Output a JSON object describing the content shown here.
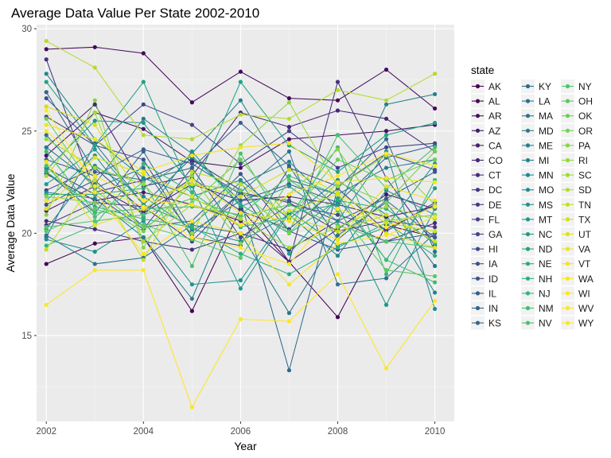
{
  "chart_data": {
    "type": "line",
    "title": "Average Data Value Per State 2002-2010",
    "xlabel": "Year",
    "ylabel": "Average Data Value",
    "xlim": [
      2001.8,
      2010.4
    ],
    "ylim": [
      10.8,
      30.2
    ],
    "x_ticks": [
      2002,
      2004,
      2006,
      2008,
      2010
    ],
    "y_ticks": [
      15,
      20,
      25,
      30
    ],
    "grid": true,
    "legend": {
      "title": "state",
      "placement": "right"
    },
    "x": [
      2002,
      2003,
      2004,
      2005,
      2006,
      2007,
      2008,
      2009,
      2010
    ],
    "series": [
      {
        "name": "AK",
        "color": "#440154",
        "values": [
          18.5,
          19.5,
          19.8,
          16.2,
          21.2,
          18.6,
          15.9,
          20.4,
          19.8
        ]
      },
      {
        "name": "AL",
        "color": "#46085C",
        "values": [
          29.0,
          29.1,
          28.8,
          26.4,
          27.9,
          26.6,
          26.5,
          28.0,
          26.1
        ]
      },
      {
        "name": "AR",
        "color": "#471063",
        "values": [
          23.8,
          25.9,
          25.1,
          23.5,
          23.2,
          24.6,
          24.8,
          25.0,
          25.3
        ]
      },
      {
        "name": "AZ",
        "color": "#481769",
        "values": [
          22.9,
          21.6,
          22.0,
          21.4,
          20.6,
          18.6,
          20.2,
          21.9,
          21.2
        ]
      },
      {
        "name": "CA",
        "color": "#481E70",
        "values": [
          21.1,
          22.3,
          21.0,
          22.4,
          21.6,
          21.8,
          21.4,
          20.8,
          21.3
        ]
      },
      {
        "name": "CO",
        "color": "#472575",
        "values": [
          24.2,
          26.3,
          22.3,
          22.8,
          25.9,
          25.2,
          26.0,
          25.6,
          24.0
        ]
      },
      {
        "name": "CT",
        "color": "#472C7A",
        "values": [
          20.6,
          20.2,
          19.6,
          19.2,
          20.0,
          19.2,
          20.6,
          19.6,
          20.5
        ]
      },
      {
        "name": "DC",
        "color": "#46327E",
        "values": [
          28.5,
          22.0,
          22.6,
          23.6,
          22.1,
          18.6,
          27.4,
          22.7,
          19.4
        ]
      },
      {
        "name": "DE",
        "color": "#453882",
        "values": [
          20.4,
          21.5,
          21.3,
          19.6,
          22.0,
          21.5,
          20.1,
          20.6,
          20.3
        ]
      },
      {
        "name": "FL",
        "color": "#433E85",
        "values": [
          22.1,
          23.2,
          21.1,
          22.7,
          21.1,
          20.2,
          22.2,
          20.1,
          21.5
        ]
      },
      {
        "name": "GA",
        "color": "#414487",
        "values": [
          25.7,
          24.3,
          26.3,
          25.3,
          23.4,
          25.0,
          23.2,
          24.2,
          24.4
        ]
      },
      {
        "name": "HI",
        "color": "#3F4A8A",
        "values": [
          23.2,
          21.9,
          20.2,
          23.2,
          19.8,
          21.4,
          20.9,
          20.2,
          21.4
        ]
      },
      {
        "name": "IA",
        "color": "#3C4F8A",
        "values": [
          26.6,
          24.3,
          23.6,
          19.8,
          19.4,
          23.2,
          22.3,
          23.9,
          23.1
        ]
      },
      {
        "name": "ID",
        "color": "#39558C",
        "values": [
          21.4,
          22.6,
          20.3,
          20.6,
          22.9,
          20.1,
          19.2,
          19.6,
          20.0
        ]
      },
      {
        "name": "IL",
        "color": "#375B8D",
        "values": [
          23.6,
          22.8,
          24.1,
          23.4,
          21.9,
          21.6,
          20.6,
          21.7,
          23.0
        ]
      },
      {
        "name": "IN",
        "color": "#34618D",
        "values": [
          26.9,
          23.0,
          22.6,
          23.2,
          25.4,
          23.3,
          19.7,
          21.6,
          19.8
        ]
      },
      {
        "name": "KS",
        "color": "#31668E",
        "values": [
          23.0,
          21.0,
          24.0,
          20.1,
          21.6,
          22.4,
          21.5,
          23.7,
          24.3
        ]
      },
      {
        "name": "KY",
        "color": "#2F6B8E",
        "values": [
          19.8,
          24.4,
          21.4,
          23.7,
          21.6,
          13.3,
          22.2,
          24.6,
          19.1
        ]
      },
      {
        "name": "LA",
        "color": "#2D718E",
        "values": [
          24.8,
          22.2,
          23.2,
          19.9,
          22.0,
          24.0,
          17.5,
          17.8,
          20.0
        ]
      },
      {
        "name": "MA",
        "color": "#2B758E",
        "values": [
          19.9,
          18.5,
          18.8,
          20.4,
          20.0,
          16.1,
          19.9,
          21.5,
          18.4
        ]
      },
      {
        "name": "MD",
        "color": "#297A8E",
        "values": [
          24.2,
          22.4,
          25.6,
          23.9,
          26.5,
          22.6,
          21.9,
          23.2,
          23.6
        ]
      },
      {
        "name": "ME",
        "color": "#277F8E",
        "values": [
          22.0,
          21.7,
          19.8,
          16.8,
          22.4,
          23.5,
          21.2,
          26.3,
          26.8
        ]
      },
      {
        "name": "MI",
        "color": "#25848E",
        "values": [
          27.8,
          24.6,
          22.7,
          21.8,
          22.6,
          20.7,
          22.6,
          20.9,
          17.1
        ]
      },
      {
        "name": "MN",
        "color": "#23898E",
        "values": [
          20.2,
          23.3,
          21.8,
          20.2,
          19.6,
          20.9,
          18.9,
          22.1,
          20.9
        ]
      },
      {
        "name": "MO",
        "color": "#218E8D",
        "values": [
          21.6,
          23.8,
          20.8,
          24.0,
          21.3,
          22.3,
          20.6,
          24.0,
          16.3
        ]
      },
      {
        "name": "MS",
        "color": "#1F928C",
        "values": [
          19.7,
          19.1,
          20.6,
          17.5,
          17.7,
          21.1,
          19.4,
          20.3,
          23.4
        ]
      },
      {
        "name": "MT",
        "color": "#1E978A",
        "values": [
          23.1,
          25.5,
          25.4,
          22.3,
          17.3,
          21.0,
          21.4,
          16.5,
          21.2
        ]
      },
      {
        "name": "NC",
        "color": "#1F9C89",
        "values": [
          22.4,
          24.1,
          21.4,
          20.4,
          22.5,
          19.0,
          21.7,
          18.7,
          22.2
        ]
      },
      {
        "name": "ND",
        "color": "#20A386",
        "values": [
          27.4,
          24.3,
          27.4,
          22.0,
          27.4,
          24.3,
          23.0,
          24.8,
          25.4
        ]
      },
      {
        "name": "NE",
        "color": "#25AB82",
        "values": [
          21.9,
          21.9,
          22.2,
          23.8,
          21.4,
          20.0,
          21.6,
          21.2,
          19.5
        ]
      },
      {
        "name": "NH",
        "color": "#29AF7F",
        "values": [
          23.0,
          21.3,
          20.7,
          20.3,
          19.0,
          18.0,
          19.3,
          20.5,
          18.9
        ]
      },
      {
        "name": "NJ",
        "color": "#35B779",
        "values": [
          19.4,
          20.4,
          23.4,
          22.0,
          20.3,
          20.8,
          24.2,
          18.0,
          22.6
        ]
      },
      {
        "name": "NM",
        "color": "#3DBC74",
        "values": [
          24.0,
          21.0,
          21.2,
          21.3,
          20.9,
          22.8,
          21.9,
          18.7,
          17.6
        ]
      },
      {
        "name": "NV",
        "color": "#48C16E",
        "values": [
          23.3,
          20.8,
          22.5,
          18.4,
          23.9,
          20.1,
          24.8,
          22.2,
          24.2
        ]
      },
      {
        "name": "NY",
        "color": "#52C569",
        "values": [
          20.3,
          20.6,
          20.9,
          21.7,
          20.8,
          21.4,
          20.4,
          19.6,
          19.3
        ]
      },
      {
        "name": "OH",
        "color": "#5DC863",
        "values": [
          20.1,
          21.2,
          20.4,
          19.7,
          18.8,
          22.6,
          21.1,
          18.2,
          17.9
        ]
      },
      {
        "name": "OK",
        "color": "#6ACD5B",
        "values": [
          25.6,
          22.1,
          20.3,
          21.5,
          23.6,
          20.8,
          23.6,
          22.6,
          23.6
        ]
      },
      {
        "name": "OR",
        "color": "#75D054",
        "values": [
          21.8,
          21.5,
          20.1,
          22.4,
          22.1,
          20.0,
          22.5,
          21.5,
          24.0
        ]
      },
      {
        "name": "PA",
        "color": "#86D549",
        "values": [
          20.9,
          26.5,
          19.3,
          22.8,
          19.5,
          21.9,
          24.1,
          20.6,
          20.9
        ]
      },
      {
        "name": "RI",
        "color": "#95D840",
        "values": [
          24.6,
          23.2,
          22.4,
          20.0,
          24.3,
          26.4,
          22.3,
          23.8,
          21.4
        ]
      },
      {
        "name": "SC",
        "color": "#A2DB34",
        "values": [
          22.8,
          25.9,
          19.6,
          21.4,
          20.7,
          19.3,
          20.3,
          21.3,
          20.7
        ]
      },
      {
        "name": "SD",
        "color": "#B2DD2D",
        "values": [
          29.4,
          28.1,
          24.8,
          24.6,
          25.8,
          25.6,
          27.0,
          26.5,
          27.8
        ]
      },
      {
        "name": "TN",
        "color": "#C3DF22",
        "values": [
          19.2,
          22.6,
          18.7,
          23.0,
          22.4,
          20.8,
          20.1,
          20.9,
          19.6
        ]
      },
      {
        "name": "TX",
        "color": "#CFE11C",
        "values": [
          26.2,
          25.3,
          21.6,
          22.4,
          21.8,
          23.1,
          22.0,
          20.5,
          20.1
        ]
      },
      {
        "name": "UT",
        "color": "#DDE318",
        "values": [
          21.2,
          23.7,
          22.9,
          21.8,
          20.4,
          21.1,
          21.9,
          20.0,
          19.3
        ]
      },
      {
        "name": "VA",
        "color": "#EAE51A",
        "values": [
          23.5,
          20.4,
          21.2,
          22.6,
          21.0,
          20.6,
          19.7,
          22.3,
          21.6
        ]
      },
      {
        "name": "VT",
        "color": "#F1E51D",
        "values": [
          25.3,
          24.6,
          23.0,
          23.8,
          24.2,
          24.4,
          22.5,
          22.7,
          22.5
        ]
      },
      {
        "name": "WA",
        "color": "#F8E621",
        "values": [
          21.6,
          22.0,
          19.0,
          20.6,
          20.0,
          17.5,
          19.5,
          19.9,
          20.8
        ]
      },
      {
        "name": "WI",
        "color": "#FBE723",
        "values": [
          25.0,
          22.8,
          21.6,
          21.4,
          20.4,
          21.9,
          22.8,
          23.9,
          23.3
        ]
      },
      {
        "name": "WV",
        "color": "#FCE724",
        "values": [
          16.5,
          18.2,
          18.2,
          11.5,
          15.8,
          15.7,
          18.0,
          13.4,
          16.7
        ]
      },
      {
        "name": "WY",
        "color": "#FDE725",
        "values": [
          26.0,
          22.3,
          21.3,
          19.8,
          19.3,
          18.5,
          21.2,
          20.3,
          21.3
        ]
      }
    ]
  }
}
